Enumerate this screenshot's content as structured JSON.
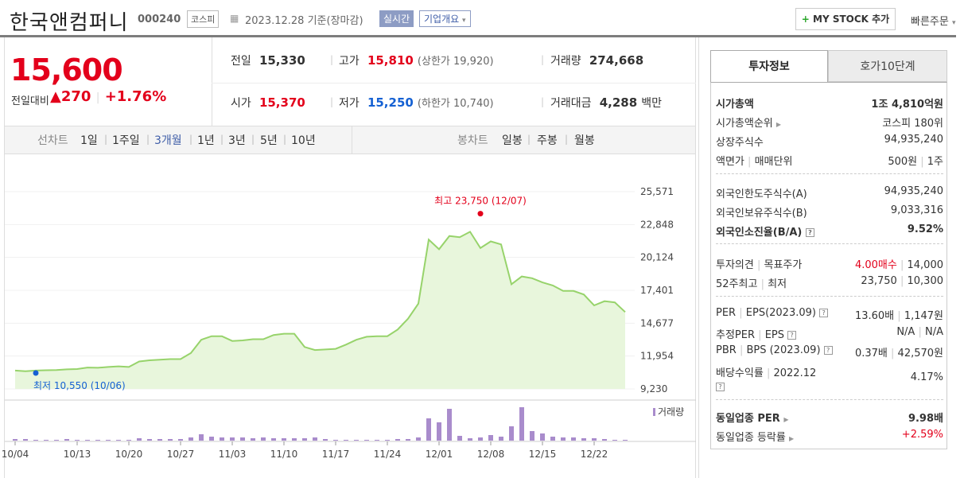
{
  "header": {
    "title": "한국앤컴퍼니",
    "code": "000240",
    "market": "코스피",
    "date": "2023.12.28",
    "basis": "기준(장마감)",
    "realtime": "실시간",
    "overview": "기업개요",
    "overview_arrow": "▾",
    "my_stock": "MY STOCK 추가",
    "quick_order": "빠른주문",
    "quick_arrow": "▾"
  },
  "price": {
    "current": "15,600",
    "change_label": "전일대비",
    "change_arrow": "▲",
    "change_value": "270",
    "change_pct": "+1.76%"
  },
  "quote": {
    "prev_label": "전일",
    "prev": "15,330",
    "high_label": "고가",
    "high": "15,810",
    "upper_limit": "(상한가 19,920)",
    "volume_label": "거래량",
    "volume": "274,668",
    "open_label": "시가",
    "open": "15,370",
    "low_label": "저가",
    "low": "15,250",
    "lower_limit": "(하한가 10,740)",
    "amount_label": "거래대금",
    "amount": "4,288",
    "amount_unit": "백만"
  },
  "chart_tabs": {
    "line_label": "선차트",
    "line": [
      "1일",
      "1주일",
      "3개월",
      "1년",
      "3년",
      "5년",
      "10년"
    ],
    "selected": "3개월",
    "candle_label": "봉차트",
    "candle": [
      "일봉",
      "주봉",
      "월봉"
    ]
  },
  "chart_data": {
    "type": "area",
    "color": "#97d36b",
    "x": [
      "10/04",
      "10/05",
      "10/06",
      "10/10",
      "10/11",
      "10/12",
      "10/13",
      "10/16",
      "10/17",
      "10/18",
      "10/19",
      "10/20",
      "10/23",
      "10/24",
      "10/25",
      "10/26",
      "10/27",
      "10/30",
      "10/31",
      "11/01",
      "11/02",
      "11/03",
      "11/06",
      "11/07",
      "11/08",
      "11/09",
      "11/10",
      "11/13",
      "11/14",
      "11/15",
      "11/16",
      "11/17",
      "11/20",
      "11/21",
      "11/22",
      "11/23",
      "11/24",
      "11/27",
      "11/28",
      "11/29",
      "11/30",
      "12/01",
      "12/04",
      "12/05",
      "12/06",
      "12/07",
      "12/08",
      "12/11",
      "12/12",
      "12/13",
      "12/14",
      "12/15",
      "12/18",
      "12/19",
      "12/20",
      "12/21",
      "12/22",
      "12/26",
      "12/27",
      "12/28"
    ],
    "price": [
      10750,
      10700,
      10750,
      10780,
      10800,
      10850,
      10880,
      11000,
      10980,
      11050,
      11100,
      11050,
      11500,
      11600,
      11650,
      11700,
      11700,
      12200,
      13300,
      13600,
      13600,
      13200,
      13250,
      13350,
      13350,
      13700,
      13800,
      13800,
      12700,
      12450,
      12500,
      12550,
      12900,
      13300,
      13550,
      13600,
      13600,
      14150,
      15050,
      16300,
      21600,
      20800,
      21900,
      21800,
      22250,
      20900,
      21450,
      21200,
      17900,
      18550,
      18400,
      18050,
      17800,
      17350,
      17350,
      17050,
      16150,
      16500,
      16400,
      15600
    ],
    "volume": [
      2,
      2,
      1,
      1,
      1,
      2,
      1,
      1,
      1,
      1,
      1,
      1,
      3,
      2,
      2,
      2,
      2,
      4,
      8,
      5,
      4,
      4,
      4,
      3,
      4,
      3,
      3,
      3,
      3,
      4,
      2,
      1,
      1,
      1,
      1,
      1,
      1,
      2,
      2,
      4,
      28,
      23,
      40,
      6,
      3,
      4,
      7,
      5,
      18,
      42,
      12,
      9,
      5,
      4,
      4,
      3,
      3,
      2,
      1,
      1
    ],
    "y_ticks": [
      "25,571",
      "22,848",
      "20,124",
      "17,401",
      "14,677",
      "11,954",
      "9,230"
    ],
    "ylim": [
      9230,
      25571
    ],
    "x_ticks": [
      "10/04",
      "10/13",
      "10/20",
      "10/27",
      "11/03",
      "11/10",
      "11/17",
      "11/24",
      "12/01",
      "12/08",
      "12/15",
      "12/22"
    ],
    "max_label": "최고 23,750 (12/07)",
    "min_label": "최저 10,550 (10/06)",
    "max_value": 23750,
    "min_value": 10550,
    "max_date": "12/07",
    "min_date": "10/06",
    "volume_legend": "거래량"
  },
  "invest": {
    "tab1": "투자정보",
    "tab2": "호가10단계",
    "market_cap_label": "시가총액",
    "market_cap": "1조 4,810억원",
    "cap_rank_label": "시가총액순위",
    "cap_rank": "코스피 180위",
    "shares_label": "상장주식수",
    "shares": "94,935,240",
    "par_label": "액면가",
    "unit_label": "매매단위",
    "par": "500원",
    "unit": "1주",
    "foreign_limit_label": "외국인한도주식수(A)",
    "foreign_limit": "94,935,240",
    "foreign_hold_label": "외국인보유주식수(B)",
    "foreign_hold": "9,033,316",
    "foreign_rate_label": "외국인소진율(B/A)",
    "foreign_rate": "9.52%",
    "opinion_label": "투자의견",
    "target_label": "목표주가",
    "opinion": "4.00매수",
    "target": "14,000",
    "w52_label": "52주최고",
    "w52_low_label": "최저",
    "w52_high": "23,750",
    "w52_low": "10,300",
    "per_label": "PER",
    "eps_label": "EPS(2023.09)",
    "per": "13.60배",
    "eps": "1,147원",
    "est_per_label": "추정PER",
    "est_eps_label": "EPS",
    "est_per": "N/A",
    "est_eps": "N/A",
    "pbr_label": "PBR",
    "bps_label": "BPS (2023.09)",
    "pbr": "0.37배",
    "bps": "42,570원",
    "div_label": "배당수익률",
    "div_year": "2022.12",
    "div": "4.17%",
    "ind_per_label": "동일업종 PER",
    "ind_per": "9.98배",
    "ind_rate_label": "동일업종 등락률",
    "ind_rate": "+2.59%"
  }
}
